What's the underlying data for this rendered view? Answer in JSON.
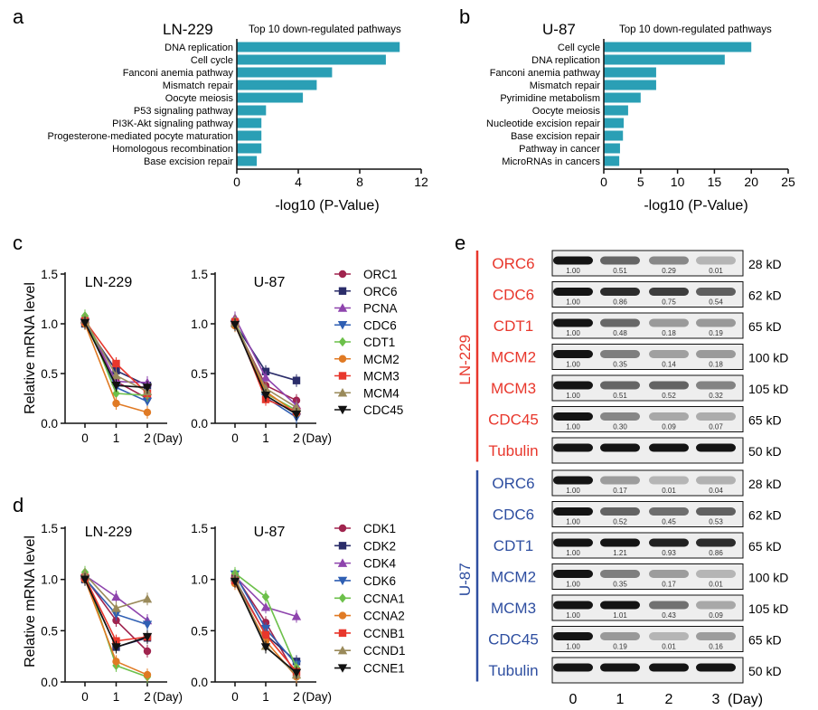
{
  "panels": {
    "a": "a",
    "b": "b",
    "c": "c",
    "d": "d",
    "e": "e"
  },
  "colors": {
    "bar": "#2a9fb5",
    "red_label": "#e8372c",
    "blue_label": "#2e4ea0",
    "series": {
      "c": [
        "#a0244e",
        "#2b2d6a",
        "#8e44ad",
        "#2f5fb3",
        "#6cc04a",
        "#e07a24",
        "#e8372c",
        "#9a8a5a",
        "#111111"
      ],
      "d": [
        "#a0244e",
        "#2b2d6a",
        "#8e44ad",
        "#2f5fb3",
        "#6cc04a",
        "#e07a24",
        "#e8372c",
        "#9a8a5a",
        "#111111"
      ]
    }
  },
  "chart_data": [
    {
      "panel": "a",
      "type": "bar",
      "orientation": "horizontal",
      "cell_label": "LN-229",
      "title": "Top 10 down-regulated pathways",
      "xlabel": "-log10 (P-Value)",
      "xlim": [
        0,
        12
      ],
      "xticks": [
        0,
        4,
        8,
        12
      ],
      "categories": [
        "DNA replication",
        "Cell cycle",
        "Fanconi anemia pathway",
        "Mismatch repair",
        "Oocyte meiosis",
        "P53 signaling pathway",
        "PI3K-Akt signaling pathway",
        "Progesterone-mediated pocyte maturation",
        "Homologous recombination",
        "Base excision repair"
      ],
      "values": [
        10.6,
        9.7,
        6.2,
        5.2,
        4.3,
        1.9,
        1.6,
        1.6,
        1.6,
        1.3
      ]
    },
    {
      "panel": "b",
      "type": "bar",
      "orientation": "horizontal",
      "cell_label": "U-87",
      "title": "Top 10 down-regulated pathways",
      "xlabel": "-log10 (P-Value)",
      "xlim": [
        0,
        25
      ],
      "xticks": [
        0,
        5,
        10,
        15,
        20,
        25
      ],
      "categories": [
        "Cell cycle",
        "DNA replication",
        "Fanconi anemia pathway",
        "Mismatch repair",
        "Pyrimidine metabolism",
        "Oocyte meiosis",
        "Nucleotide excision repair",
        "Base excision repair",
        "Pathway in cancer",
        "MicroRNAs in cancers"
      ],
      "values": [
        20.0,
        16.4,
        7.1,
        7.1,
        5.0,
        3.3,
        2.7,
        2.6,
        2.2,
        2.1
      ]
    },
    {
      "panel": "c",
      "type": "line",
      "ylabel": "Relative mRNA level",
      "x": [
        "0",
        "1",
        "2"
      ],
      "x_suffix": "(Day)",
      "ylim": [
        0,
        1.5
      ],
      "yticks": [
        "0.0",
        "0.5",
        "1.0",
        "1.5"
      ],
      "subplots": [
        {
          "title": "LN-229",
          "series": [
            {
              "name": "ORC1",
              "values": [
                1.02,
                0.42,
                0.25
              ]
            },
            {
              "name": "ORC6",
              "values": [
                1.0,
                0.53,
                0.38
              ]
            },
            {
              "name": "PCNA",
              "values": [
                1.05,
                0.42,
                0.41
              ]
            },
            {
              "name": "CDC6",
              "values": [
                1.02,
                0.36,
                0.22
              ]
            },
            {
              "name": "CDT1",
              "values": [
                1.08,
                0.3,
                0.28
              ]
            },
            {
              "name": "MCM2",
              "values": [
                1.0,
                0.2,
                0.11
              ]
            },
            {
              "name": "MCM3",
              "values": [
                1.03,
                0.6,
                0.3
              ]
            },
            {
              "name": "MCM4",
              "values": [
                1.04,
                0.48,
                0.32
              ]
            },
            {
              "name": "CDC45",
              "values": [
                1.01,
                0.38,
                0.36
              ]
            }
          ]
        },
        {
          "title": "U-87",
          "series": [
            {
              "name": "ORC1",
              "values": [
                1.0,
                0.38,
                0.23
              ]
            },
            {
              "name": "ORC6",
              "values": [
                1.0,
                0.52,
                0.43
              ]
            },
            {
              "name": "PCNA",
              "values": [
                1.06,
                0.46,
                0.18
              ]
            },
            {
              "name": "CDC6",
              "values": [
                1.0,
                0.26,
                0.06
              ]
            },
            {
              "name": "CDT1",
              "values": [
                1.03,
                0.3,
                0.13
              ]
            },
            {
              "name": "MCM2",
              "values": [
                0.98,
                0.32,
                0.1
              ]
            },
            {
              "name": "MCM3",
              "values": [
                1.02,
                0.24,
                0.12
              ]
            },
            {
              "name": "MCM4",
              "values": [
                1.01,
                0.35,
                0.16
              ]
            },
            {
              "name": "CDC45",
              "values": [
                0.99,
                0.28,
                0.09
              ]
            }
          ]
        }
      ]
    },
    {
      "panel": "d",
      "type": "line",
      "ylabel": "Relative mRNA level",
      "x": [
        "0",
        "1",
        "2"
      ],
      "x_suffix": "(Day)",
      "ylim": [
        0,
        1.5
      ],
      "yticks": [
        "0.0",
        "0.5",
        "1.0",
        "1.5"
      ],
      "subplots": [
        {
          "title": "LN-229",
          "series": [
            {
              "name": "CDK1",
              "values": [
                1.02,
                0.6,
                0.3
              ]
            },
            {
              "name": "CDK2",
              "values": [
                1.0,
                0.34,
                0.43
              ]
            },
            {
              "name": "CDK4",
              "values": [
                1.04,
                0.83,
                0.6
              ]
            },
            {
              "name": "CDK6",
              "values": [
                1.01,
                0.66,
                0.56
              ]
            },
            {
              "name": "CCNA1",
              "values": [
                1.07,
                0.16,
                0.05
              ]
            },
            {
              "name": "CCNA2",
              "values": [
                1.0,
                0.2,
                0.07
              ]
            },
            {
              "name": "CCNB1",
              "values": [
                1.02,
                0.4,
                0.44
              ]
            },
            {
              "name": "CCND1",
              "values": [
                1.05,
                0.72,
                0.81
              ]
            },
            {
              "name": "CCNE1",
              "values": [
                1.0,
                0.34,
                0.44
              ]
            }
          ]
        },
        {
          "title": "U-87",
          "series": [
            {
              "name": "CDK1",
              "values": [
                1.04,
                0.58,
                0.06
              ]
            },
            {
              "name": "CDK2",
              "values": [
                1.0,
                0.46,
                0.2
              ]
            },
            {
              "name": "CDK4",
              "values": [
                1.03,
                0.73,
                0.64
              ]
            },
            {
              "name": "CDK6",
              "values": [
                1.05,
                0.52,
                0.17
              ]
            },
            {
              "name": "CCNA1",
              "values": [
                1.06,
                0.83,
                0.14
              ]
            },
            {
              "name": "CCNA2",
              "values": [
                0.96,
                0.4,
                0.05
              ]
            },
            {
              "name": "CCNB1",
              "values": [
                0.99,
                0.46,
                0.1
              ]
            },
            {
              "name": "CCND1",
              "values": [
                1.02,
                0.35,
                0.07
              ]
            },
            {
              "name": "CCNE1",
              "values": [
                0.98,
                0.34,
                0.09
              ]
            }
          ]
        }
      ]
    }
  ],
  "western": {
    "groups": [
      {
        "name": "LN-229",
        "color": "#e8372c",
        "rows": [
          {
            "protein": "ORC6",
            "size": "28 kD",
            "values": [
              "1.00",
              "0.51",
              "0.29",
              "0.01"
            ]
          },
          {
            "protein": "CDC6",
            "size": "62 kD",
            "values": [
              "1.00",
              "0.86",
              "0.75",
              "0.54"
            ]
          },
          {
            "protein": "CDT1",
            "size": "65 kD",
            "values": [
              "1.00",
              "0.48",
              "0.18",
              "0.19"
            ]
          },
          {
            "protein": "MCM2",
            "size": "100 kD",
            "values": [
              "1.00",
              "0.35",
              "0.14",
              "0.18"
            ]
          },
          {
            "protein": "MCM3",
            "size": "105 kD",
            "values": [
              "1.00",
              "0.51",
              "0.52",
              "0.32"
            ]
          },
          {
            "protein": "CDC45",
            "size": "65 kD",
            "values": [
              "1.00",
              "0.30",
              "0.09",
              "0.07"
            ]
          },
          {
            "protein": "Tubulin",
            "size": "50 kD",
            "values": [
              "",
              "",
              "",
              ""
            ]
          }
        ]
      },
      {
        "name": "U-87",
        "color": "#2e4ea0",
        "rows": [
          {
            "protein": "ORC6",
            "size": "28 kD",
            "values": [
              "1.00",
              "0.17",
              "0.01",
              "0.04"
            ]
          },
          {
            "protein": "CDC6",
            "size": "62 kD",
            "values": [
              "1.00",
              "0.52",
              "0.45",
              "0.53"
            ]
          },
          {
            "protein": "CDT1",
            "size": "65 kD",
            "values": [
              "1.00",
              "1.21",
              "0.93",
              "0.86"
            ]
          },
          {
            "protein": "MCM2",
            "size": "100 kD",
            "values": [
              "1.00",
              "0.35",
              "0.17",
              "0.01"
            ]
          },
          {
            "protein": "MCM3",
            "size": "105 kD",
            "values": [
              "1.00",
              "1.01",
              "0.43",
              "0.09"
            ]
          },
          {
            "protein": "CDC45",
            "size": "65 kD",
            "values": [
              "1.00",
              "0.19",
              "0.01",
              "0.16"
            ]
          },
          {
            "protein": "Tubulin",
            "size": "50 kD",
            "values": [
              "",
              "",
              "",
              ""
            ]
          }
        ]
      }
    ],
    "days": [
      "0",
      "1",
      "2",
      "3"
    ],
    "day_suffix": "(Day)"
  }
}
